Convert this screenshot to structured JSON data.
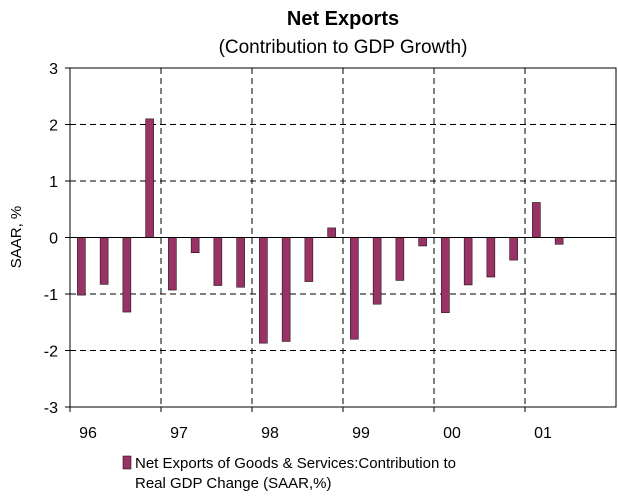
{
  "chart_data": {
    "type": "bar",
    "title": "Net Exports",
    "subtitle": "(Contribution to GDP Growth)",
    "ylabel": "SAAR, %",
    "xlabel": "",
    "ylim": [
      -3,
      3
    ],
    "yticks": [
      "3",
      "2",
      "1",
      "0",
      "-1",
      "-2",
      "-3"
    ],
    "xtick_labels": [
      "96",
      "97",
      "98",
      "99",
      "00",
      "01"
    ],
    "categories": [
      "96Q1",
      "96Q2",
      "96Q3",
      "96Q4",
      "97Q1",
      "97Q2",
      "97Q3",
      "97Q4",
      "98Q1",
      "98Q2",
      "98Q3",
      "98Q4",
      "99Q1",
      "99Q2",
      "99Q3",
      "99Q4",
      "00Q1",
      "00Q2",
      "00Q3",
      "00Q4",
      "01Q1",
      "01Q2"
    ],
    "series": [
      {
        "name": "Net Exports of Goods & Services:Contribution to Real GDP Change (SAAR,%)",
        "color": "#993366",
        "values": [
          -1.02,
          -0.83,
          -1.32,
          2.1,
          -0.93,
          -0.27,
          -0.85,
          -0.88,
          -1.87,
          -1.84,
          -0.78,
          0.17,
          -1.8,
          -1.18,
          -0.76,
          -0.15,
          -1.33,
          -0.84,
          -0.7,
          -0.4,
          0.62,
          -0.12
        ]
      }
    ],
    "legend": {
      "position": "bottom",
      "line1": "Net Exports of Goods & Services:Contribution to",
      "line2": "Real GDP Change (SAAR,%)"
    },
    "grid": true
  }
}
